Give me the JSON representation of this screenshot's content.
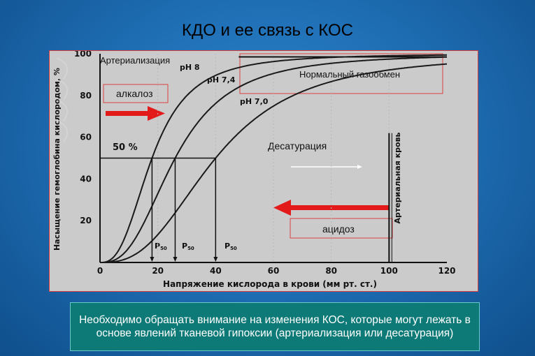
{
  "slide": {
    "title": "КДО и ее связь с КОС",
    "footer": "Необходимо обращать внимание на изменения КОС, которые могут лежать в основе явлений тканевой гипоксии (артериализация или десатурация)"
  },
  "chart_data": {
    "type": "line",
    "ylabel": "Насыщение гемоглобина кислородом, %",
    "xlabel": "Напряжение кислорода в крови (мм рт. ст.)",
    "xlim": [
      0,
      120
    ],
    "ylim": [
      0,
      100
    ],
    "x_ticks": [
      "0",
      "20",
      "40",
      "60",
      "80",
      "100",
      "120"
    ],
    "y_ticks": [
      "20",
      "40",
      "60",
      "80",
      "100"
    ],
    "series": [
      {
        "name": "pH 8",
        "p50": 18,
        "hill": 2.7
      },
      {
        "name": "pH 7,4",
        "p50": 26,
        "hill": 2.7
      },
      {
        "name": "pH 7,0",
        "p50": 40,
        "hill": 2.7
      }
    ],
    "fifty_label": "50 %",
    "p50_label": "P",
    "p50_sub": "50",
    "arterial_label": "Артериальная кровь",
    "annotations": {
      "arterialization": "Артериализация",
      "alkalosis": "алкалоз",
      "normal": "Нормальный газообмен",
      "desaturation": "Десатурация",
      "acidosis": "ацидоз"
    },
    "colors": {
      "arrow": "#e21a1a",
      "box_border": "#d84040",
      "curve": "#1a1a1a"
    }
  }
}
